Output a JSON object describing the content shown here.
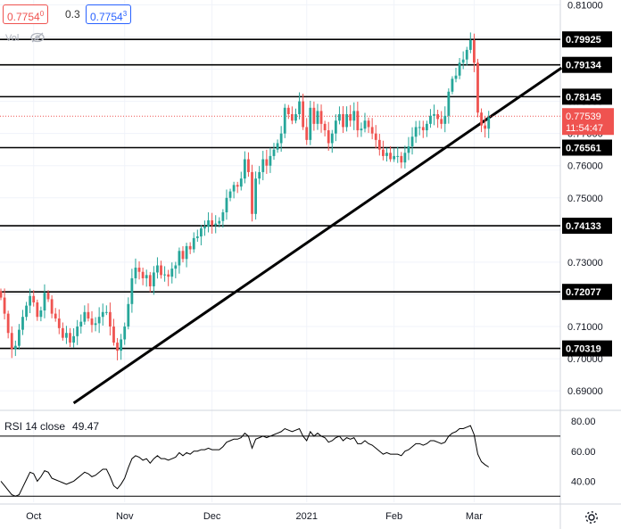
{
  "toolbar": {
    "bid": "0.7754",
    "bid_sup": "0",
    "spread": "0.3",
    "ask": "0.7754",
    "ask_sup": "3",
    "vol_label": "Vol"
  },
  "icons": {
    "hide": "eye-slash-icon",
    "settings": "gear-icon"
  },
  "chart_data": [
    {
      "type": "candlestick",
      "symbol_pair_price": "0.77539",
      "countdown": "11:54:47",
      "ylim": [
        0.6845,
        0.8115
      ],
      "y_ticks": [
        "0.81000",
        "0.80000",
        "0.79000",
        "0.78000",
        "0.77000",
        "0.76000",
        "0.75000",
        "0.74000",
        "0.73000",
        "0.72000",
        "0.71000",
        "0.70000",
        "0.69000"
      ],
      "y_tick_values": [
        0.81,
        0.8,
        0.79,
        0.78,
        0.77,
        0.76,
        0.75,
        0.74,
        0.73,
        0.72,
        0.71,
        0.7,
        0.69
      ],
      "x_ticks": [
        "Oct",
        "Nov",
        "Dec",
        "2021",
        "Feb",
        "Mar"
      ],
      "x_tick_index": [
        9,
        34,
        58,
        84,
        108,
        130
      ],
      "levels": [
        {
          "label": "0.79925",
          "value": 0.79925
        },
        {
          "label": "0.79134",
          "value": 0.79134
        },
        {
          "label": "0.78145",
          "value": 0.78145
        },
        {
          "label": "0.76561",
          "value": 0.76561
        },
        {
          "label": "0.74133",
          "value": 0.74133
        },
        {
          "label": "0.72077",
          "value": 0.72077
        },
        {
          "label": "0.70319",
          "value": 0.70319
        }
      ],
      "trendline": {
        "from_index": 20,
        "from_value": 0.6862,
        "to_index": 154,
        "to_value": 0.7904
      },
      "current_price": 0.77539,
      "closes": [
        0.719,
        0.714,
        0.708,
        0.703,
        0.704,
        0.709,
        0.713,
        0.7165,
        0.7195,
        0.7175,
        0.713,
        0.715,
        0.7205,
        0.7185,
        0.714,
        0.7125,
        0.7095,
        0.7065,
        0.708,
        0.705,
        0.707,
        0.71,
        0.7115,
        0.7145,
        0.7125,
        0.7105,
        0.711,
        0.713,
        0.7145,
        0.7145,
        0.71,
        0.705,
        0.7025,
        0.706,
        0.71,
        0.717,
        0.725,
        0.7283,
        0.727,
        0.725,
        0.726,
        0.7225,
        0.7268,
        0.729,
        0.726,
        0.7262,
        0.7255,
        0.728,
        0.729,
        0.7335,
        0.731,
        0.735,
        0.734,
        0.7375,
        0.738,
        0.7405,
        0.741,
        0.743,
        0.7415,
        0.742,
        0.7428,
        0.7455,
        0.75,
        0.752,
        0.754,
        0.7535,
        0.756,
        0.762,
        0.758,
        0.745,
        0.756,
        0.758,
        0.762,
        0.76,
        0.763,
        0.765,
        0.767,
        0.77,
        0.778,
        0.776,
        0.774,
        0.776,
        0.78,
        0.772,
        0.768,
        0.778,
        0.773,
        0.777,
        0.773,
        0.771,
        0.767,
        0.77,
        0.774,
        0.776,
        0.772,
        0.776,
        0.774,
        0.777,
        0.771,
        0.7715,
        0.774,
        0.772,
        0.77,
        0.768,
        0.765,
        0.763,
        0.764,
        0.762,
        0.763,
        0.763,
        0.761,
        0.764,
        0.766,
        0.769,
        0.772,
        0.772,
        0.771,
        0.773,
        0.7755,
        0.776,
        0.7745,
        0.773,
        0.7755,
        0.783,
        0.787,
        0.788,
        0.792,
        0.793,
        0.796,
        0.799,
        0.792,
        0.7765,
        0.7725,
        0.7715,
        0.775
      ],
      "rsi": {
        "label": "RSI 14 close",
        "value_label": "49.47",
        "ylim": [
          26,
          86
        ],
        "ticks": [
          "80.00",
          "60.00",
          "40.00"
        ],
        "tick_values": [
          80,
          60,
          40
        ],
        "bands": [
          70,
          30
        ],
        "values": [
          40,
          37,
          34,
          31,
          30,
          31,
          36,
          41,
          46,
          45,
          40,
          43,
          47,
          46,
          42,
          41,
          40,
          39,
          38,
          39,
          40,
          42,
          44,
          46,
          45,
          43,
          44,
          46,
          48,
          48,
          43,
          37,
          35,
          38,
          42,
          49,
          55,
          57,
          56,
          54,
          55,
          52,
          55,
          57,
          55,
          55,
          54,
          55,
          56,
          59,
          57,
          59,
          58,
          60,
          60,
          61,
          61,
          62,
          61,
          61,
          61,
          63,
          66,
          67,
          68,
          68,
          69,
          72,
          70,
          62,
          68,
          69,
          70,
          69,
          70,
          71,
          72,
          73,
          75,
          74,
          73,
          74,
          75,
          70,
          67,
          73,
          70,
          72,
          70,
          69,
          66,
          67,
          69,
          70,
          67,
          69,
          68,
          69,
          65,
          65,
          67,
          65,
          64,
          62,
          60,
          58,
          59,
          58,
          58,
          58,
          57,
          60,
          61,
          63,
          65,
          65,
          64,
          65,
          67,
          67,
          66,
          65,
          66,
          70,
          72,
          73,
          75,
          75,
          76,
          77,
          71,
          58,
          53,
          51,
          49.47
        ]
      }
    }
  ]
}
